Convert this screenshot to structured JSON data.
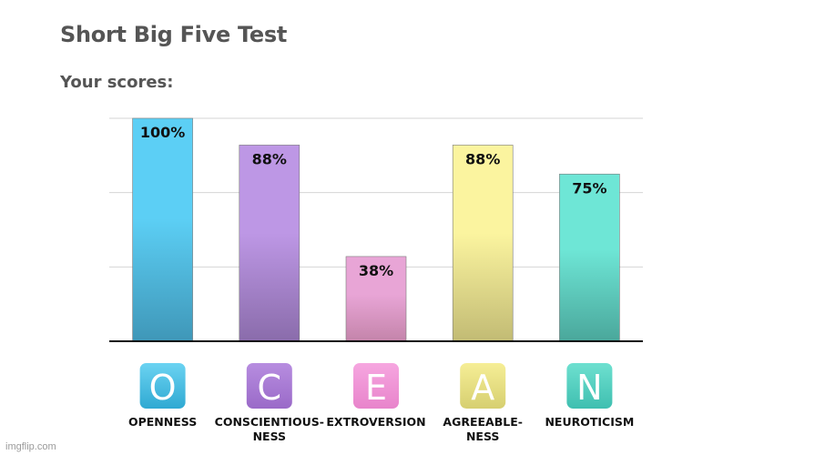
{
  "page": {
    "title": "Short Big Five Test",
    "subtitle": "Your scores:",
    "watermark": "imgflip.com"
  },
  "chart_data": {
    "type": "bar",
    "categories": [
      "OPENNESS",
      "CONSCIENTIOUS-\nNESS",
      "EXTROVERSION",
      "AGREEABLE-\nNESS",
      "NEUROTICISM"
    ],
    "values": [
      100,
      88,
      38,
      88,
      75
    ],
    "value_labels": [
      "100%",
      "88%",
      "38%",
      "88%",
      "75%"
    ],
    "icon_letters": [
      "O",
      "C",
      "E",
      "A",
      "N"
    ],
    "colors": {
      "top": [
        "#5ccff5",
        "#bd97e5",
        "#e8a5d6",
        "#fbf49f",
        "#6ee6d6"
      ],
      "bottom": [
        "#3f97b8",
        "#8a6cab",
        "#c484aa",
        "#c2bb74",
        "#4aa79b"
      ],
      "icon_top": [
        "#6bd3f2",
        "#b78de0",
        "#f6a6e0",
        "#f6ee96",
        "#6ee0d0"
      ],
      "icon_bottom": [
        "#2fa9d2",
        "#9a6ac8",
        "#e884cb",
        "#d6cf70",
        "#3fbfb0"
      ]
    },
    "ylim": [
      0,
      100
    ],
    "grid": true,
    "xlabel": "",
    "ylabel": ""
  }
}
